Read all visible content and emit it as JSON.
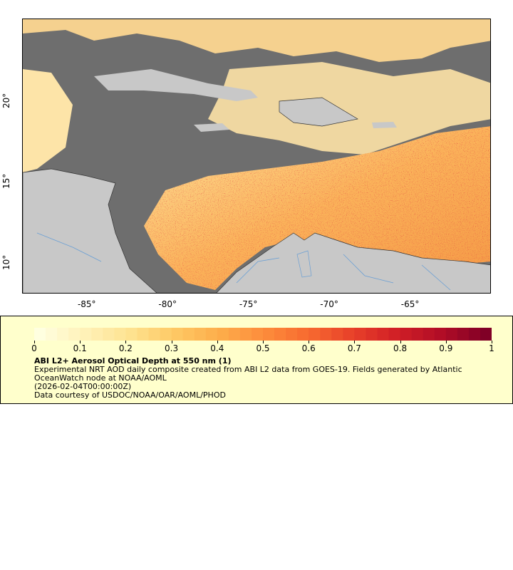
{
  "map": {
    "x_ticks": [
      {
        "value": -85,
        "label": "-85°"
      },
      {
        "value": -80,
        "label": "-80°"
      },
      {
        "value": -75,
        "label": "-75°"
      },
      {
        "value": -70,
        "label": "-70°"
      },
      {
        "value": -65,
        "label": "-65°"
      }
    ],
    "y_ticks": [
      {
        "value": 20,
        "label": "20°"
      },
      {
        "value": 15,
        "label": "15°"
      },
      {
        "value": 10,
        "label": "10°"
      }
    ],
    "lon_range": [
      -89,
      -60
    ],
    "lat_range": [
      8,
      25
    ],
    "colors": {
      "nodata_gray": "#6e6e6e",
      "land_gray": "#c8c8c8",
      "border": "#333333",
      "river": "#6a9fd4"
    }
  },
  "colorbar": {
    "ticks": [
      "0",
      "0.1",
      "0.2",
      "0.3",
      "0.4",
      "0.5",
      "0.6",
      "0.7",
      "0.8",
      "0.9",
      "1"
    ],
    "colormap": [
      "#ffffe0",
      "#fff1b8",
      "#fee391",
      "#fec965",
      "#fdae4b",
      "#fd8d3c",
      "#f76b30",
      "#e8412a",
      "#d11f26",
      "#b10d26",
      "#800026"
    ]
  },
  "legend": {
    "title": "ABI L2+ Aerosol Optical Depth at 550 nm (1)",
    "description": "Experimental NRT AOD daily composite created from ABI L2 data from GOES-19. Fields generated by Atlantic OceanWatch node at NOAA/AOML",
    "time": "(2026-02-04T00:00:00Z)",
    "credit": "Data courtesy of USDOC/NOAA/OAR/AOML/PHOD"
  }
}
